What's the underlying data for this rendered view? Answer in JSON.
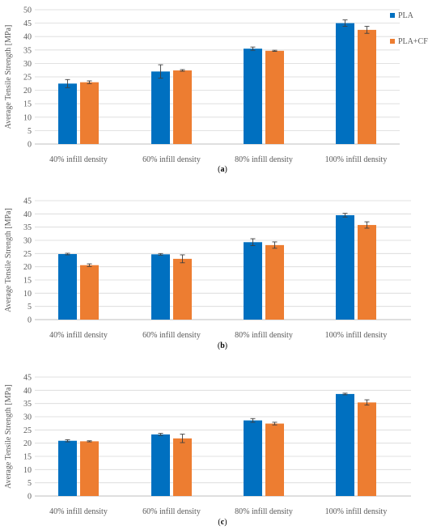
{
  "colors": {
    "PLA": "#0070C0",
    "PLA+CF": "#ED7D31",
    "grid": "#D9D9D9",
    "axis": "#BFBFBF",
    "error_bar": "#404040"
  },
  "chart_data": [
    {
      "panel": "a",
      "caption_open": "(",
      "caption_letter": "a",
      "caption_close": ")",
      "type": "bar",
      "ylabel": "Average Tensile Strength [MPa]",
      "ylim": [
        0,
        50
      ],
      "yticks": [
        0,
        5,
        10,
        15,
        20,
        25,
        30,
        35,
        40,
        45,
        50
      ],
      "grid": true,
      "legend": "right",
      "categories": [
        "40% infill density",
        "60% infill density",
        "80% infill density",
        "100% infill density"
      ],
      "series": [
        {
          "name": "PLA",
          "values": [
            22.5,
            27.0,
            35.5,
            45.0
          ],
          "errors": [
            1.5,
            2.5,
            0.6,
            1.2
          ]
        },
        {
          "name": "PLA+CF",
          "values": [
            23.0,
            27.4,
            34.7,
            42.5
          ],
          "errors": [
            0.5,
            0.3,
            0.2,
            1.3
          ]
        }
      ]
    },
    {
      "panel": "b",
      "caption_open": "(",
      "caption_letter": "b",
      "caption_close": ")",
      "type": "bar",
      "ylabel": "Average Tensile Strength [MPa]",
      "ylim": [
        0,
        45
      ],
      "yticks": [
        0,
        5,
        10,
        15,
        20,
        25,
        30,
        35,
        40,
        45
      ],
      "grid": true,
      "categories": [
        "40% infill density",
        "60% infill density",
        "80% infill density",
        "100% infill density"
      ],
      "series": [
        {
          "name": "PLA",
          "values": [
            24.8,
            24.7,
            29.3,
            39.5
          ],
          "errors": [
            0.3,
            0.3,
            1.3,
            0.7
          ]
        },
        {
          "name": "PLA+CF",
          "values": [
            20.6,
            23.0,
            28.2,
            35.8
          ],
          "errors": [
            0.5,
            1.5,
            1.2,
            1.2
          ]
        }
      ]
    },
    {
      "panel": "c",
      "caption_open": "(",
      "caption_letter": "c",
      "caption_close": ")",
      "type": "bar",
      "ylabel": "Average Tensile Strength [MPa]",
      "ylim": [
        0,
        45
      ],
      "yticks": [
        0,
        5,
        10,
        15,
        20,
        25,
        30,
        35,
        40,
        45
      ],
      "grid": true,
      "categories": [
        "40% infill density",
        "60% infill density",
        "80% infill density",
        "100% infill density"
      ],
      "series": [
        {
          "name": "PLA",
          "values": [
            20.9,
            23.3,
            28.6,
            38.6
          ],
          "errors": [
            0.4,
            0.4,
            0.7,
            0.3
          ]
        },
        {
          "name": "PLA+CF",
          "values": [
            20.7,
            21.8,
            27.4,
            35.4
          ],
          "errors": [
            0.2,
            1.6,
            0.5,
            1.0
          ]
        }
      ]
    }
  ]
}
